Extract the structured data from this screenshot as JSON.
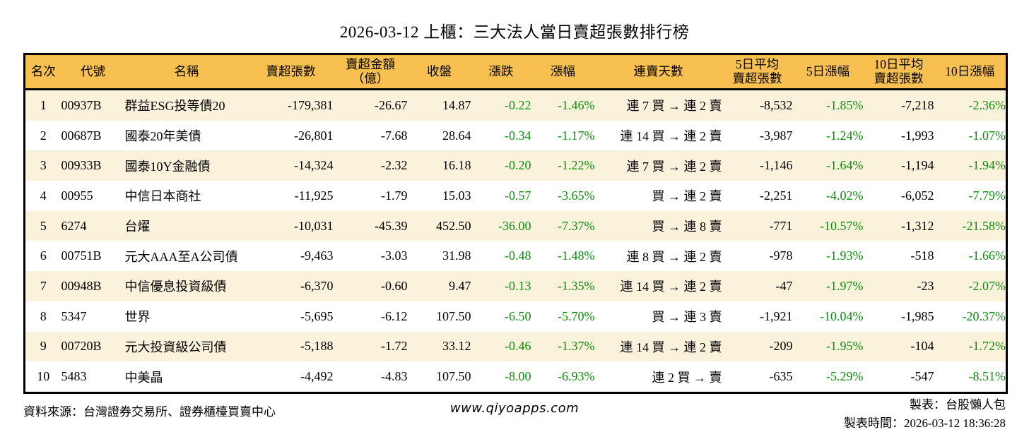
{
  "title": "2026-03-12 上櫃：三大法人當日賣超張數排行榜",
  "chart_data": {
    "type": "table",
    "title": "2026-03-12 上櫃：三大法人當日賣超張數排行榜",
    "columns": [
      "名次",
      "代號",
      "名稱",
      "賣超張數",
      "賣超金額\n（億）",
      "收盤",
      "漲跌",
      "漲幅",
      "連賣天數",
      "5日平均\n賣超張數",
      "5日漲幅",
      "10日平均\n賣超張數",
      "10日漲幅"
    ],
    "rows": [
      [
        "1",
        "00937B",
        "群益ESG投等債20",
        "-179,381",
        "-26.67",
        "14.87",
        "-0.22",
        "-1.46%",
        "連 7 買 → 連 2 賣",
        "-8,532",
        "-1.85%",
        "-7,218",
        "-2.36%"
      ],
      [
        "2",
        "00687B",
        "國泰20年美債",
        "-26,801",
        "-7.68",
        "28.64",
        "-0.34",
        "-1.17%",
        "連 14 買 → 連 2 賣",
        "-3,987",
        "-1.24%",
        "-1,993",
        "-1.07%"
      ],
      [
        "3",
        "00933B",
        "國泰10Y金融債",
        "-14,324",
        "-2.32",
        "16.18",
        "-0.20",
        "-1.22%",
        "連 7 買 → 連 2 賣",
        "-1,146",
        "-1.64%",
        "-1,194",
        "-1.94%"
      ],
      [
        "4",
        "00955",
        "中信日本商社",
        "-11,925",
        "-1.79",
        "15.03",
        "-0.57",
        "-3.65%",
        "買 → 連 2 賣",
        "-2,251",
        "-4.02%",
        "-6,052",
        "-7.79%"
      ],
      [
        "5",
        "6274",
        "台燿",
        "-10,031",
        "-45.39",
        "452.50",
        "-36.00",
        "-7.37%",
        "買 → 連 8 賣",
        "-771",
        "-10.57%",
        "-1,312",
        "-21.58%"
      ],
      [
        "6",
        "00751B",
        "元大AAA至A公司債",
        "-9,463",
        "-3.03",
        "31.98",
        "-0.48",
        "-1.48%",
        "連 8 買 → 連 2 賣",
        "-978",
        "-1.93%",
        "-518",
        "-1.66%"
      ],
      [
        "7",
        "00948B",
        "中信優息投資級債",
        "-6,370",
        "-0.60",
        "9.47",
        "-0.13",
        "-1.35%",
        "連 14 買 → 連 2 賣",
        "-47",
        "-1.97%",
        "-23",
        "-2.07%"
      ],
      [
        "8",
        "5347",
        "世界",
        "-5,695",
        "-6.12",
        "107.50",
        "-6.50",
        "-5.70%",
        "買 → 連 3 賣",
        "-1,921",
        "-10.04%",
        "-1,985",
        "-20.37%"
      ],
      [
        "9",
        "00720B",
        "元大投資級公司債",
        "-5,188",
        "-1.72",
        "33.12",
        "-0.46",
        "-1.37%",
        "連 14 買 → 連 2 賣",
        "-209",
        "-1.95%",
        "-104",
        "-1.72%"
      ],
      [
        "10",
        "5483",
        "中美晶",
        "-4,492",
        "-4.83",
        "107.50",
        "-8.00",
        "-6.93%",
        "連 2 買 → 賣",
        "-635",
        "-5.29%",
        "-547",
        "-8.51%"
      ]
    ]
  },
  "footer": {
    "source": "資料來源：台灣證券交易所、證券櫃檯買賣中心",
    "website": "www.qiyoapps.com",
    "author": "製表：台股懶人包",
    "timestamp": "製表時間：2026-03-12 18:36:28"
  },
  "colors": {
    "header_bg": "#f7c050",
    "row_alt_bg": "#fbf2dc",
    "negative_green": "#0a8f0a",
    "border": "#000000"
  }
}
